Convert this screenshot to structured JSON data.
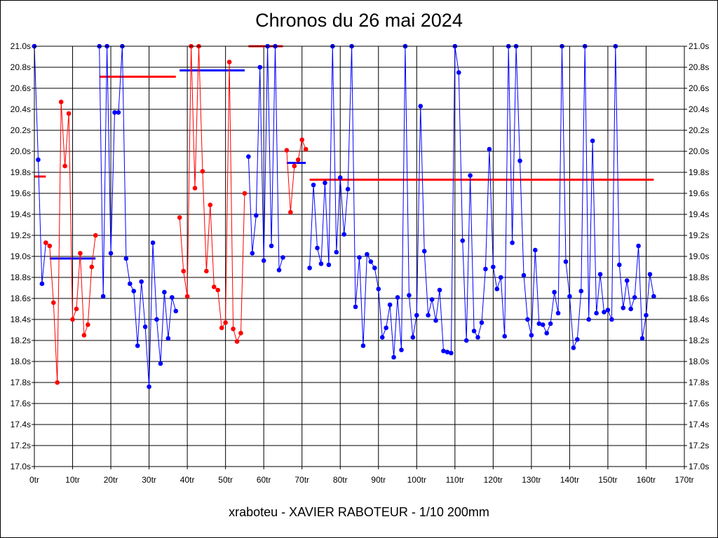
{
  "chart_data": {
    "type": "line",
    "title": "Chronos du 26 mai 2024",
    "subtitle": "xraboteu - XAVIER RABOTEUR - 1/10 200mm",
    "xlabel": "",
    "ylabel": "",
    "xlim": [
      0,
      170
    ],
    "ylim": [
      17.0,
      21.0
    ],
    "grid": true,
    "x_ticks": [
      "0tr",
      "10tr",
      "20tr",
      "30tr",
      "40tr",
      "50tr",
      "60tr",
      "70tr",
      "80tr",
      "90tr",
      "100tr",
      "110tr",
      "120tr",
      "130tr",
      "140tr",
      "150tr",
      "160tr",
      "170tr"
    ],
    "x_tick_values": [
      0,
      10,
      20,
      30,
      40,
      50,
      60,
      70,
      80,
      90,
      100,
      110,
      120,
      130,
      140,
      150,
      160,
      170
    ],
    "y_ticks": [
      "17.0s",
      "17.2s",
      "17.4s",
      "17.6s",
      "17.8s",
      "18.0s",
      "18.2s",
      "18.4s",
      "18.6s",
      "18.8s",
      "19.0s",
      "19.2s",
      "19.4s",
      "19.6s",
      "19.8s",
      "20.0s",
      "20.2s",
      "20.4s",
      "20.6s",
      "20.8s",
      "21.0s"
    ],
    "y_tick_values": [
      17.0,
      17.2,
      17.4,
      17.6,
      17.8,
      18.0,
      18.2,
      18.4,
      18.6,
      18.8,
      19.0,
      19.2,
      19.4,
      19.6,
      19.8,
      20.0,
      20.2,
      20.4,
      20.6,
      20.8,
      21.0
    ],
    "colors": {
      "red": "#ff0000",
      "blue": "#0000ff",
      "grid": "#000000"
    },
    "series": [
      {
        "color": "red",
        "x": [
          0
        ],
        "y": [
          21.0
        ]
      },
      {
        "color": "blue",
        "x": [
          0,
          1,
          2,
          3
        ],
        "y": [
          21.0,
          19.92,
          18.74,
          19.13
        ]
      },
      {
        "color": "red",
        "x": [
          3,
          4,
          5,
          6,
          7,
          8,
          9,
          10,
          11,
          12,
          13,
          14,
          15,
          16
        ],
        "y": [
          19.13,
          19.1,
          18.56,
          17.8,
          20.47,
          19.86,
          20.36,
          18.4,
          18.5,
          19.03,
          18.25,
          18.35,
          18.9,
          19.2
        ]
      },
      {
        "color": "blue",
        "x": [
          17,
          18,
          19,
          20,
          21,
          22,
          23,
          24,
          25,
          26,
          27,
          28,
          29,
          30,
          31,
          32,
          33,
          34,
          35,
          36,
          37
        ],
        "y": [
          21.0,
          18.62,
          21.0,
          19.03,
          20.37,
          20.37,
          21.0,
          18.98,
          18.74,
          18.67,
          18.15,
          18.76,
          18.33,
          17.76,
          19.13,
          18.4,
          17.98,
          18.66,
          18.22,
          18.61,
          18.48
        ]
      },
      {
        "color": "red",
        "x": [
          38,
          39,
          40,
          41,
          42,
          43,
          44,
          45,
          46,
          47,
          48,
          49,
          50,
          51,
          52,
          53,
          54,
          55
        ],
        "y": [
          19.37,
          18.86,
          18.62,
          21.0,
          19.65,
          21.0,
          19.81,
          18.86,
          19.49,
          18.71,
          18.68,
          18.32,
          18.37,
          20.85,
          18.31,
          18.19,
          18.27,
          19.6
        ]
      },
      {
        "color": "blue",
        "x": [
          56,
          57,
          58,
          59,
          60,
          61,
          62,
          63,
          64,
          65
        ],
        "y": [
          19.95,
          19.03,
          19.39,
          20.8,
          18.96,
          21.0,
          19.1,
          21.0,
          18.87,
          18.99
        ]
      },
      {
        "color": "red",
        "x": [
          66,
          67,
          68,
          69,
          70,
          71
        ],
        "y": [
          20.01,
          19.42,
          19.86,
          19.92,
          20.11,
          20.02
        ]
      },
      {
        "color": "blue",
        "x": [
          72,
          73,
          74,
          75,
          76,
          77,
          78,
          79,
          80,
          81,
          82,
          83,
          84,
          85,
          86,
          87,
          88,
          89,
          90,
          91,
          92,
          93,
          94,
          95,
          96,
          97,
          98,
          99,
          100,
          101,
          102,
          103,
          104,
          105,
          106,
          107,
          108,
          109,
          110,
          111,
          112,
          113,
          114,
          115,
          116,
          117,
          118,
          119,
          120,
          121,
          122,
          123,
          124,
          125,
          126,
          127,
          128,
          129,
          130,
          131,
          132,
          133,
          134,
          135,
          136,
          137,
          138,
          139,
          140,
          141,
          142,
          143,
          144,
          145,
          146,
          147,
          148,
          149,
          150,
          151,
          152,
          153,
          154,
          155,
          156,
          157,
          158,
          159,
          160,
          161,
          162
        ],
        "y": [
          18.89,
          19.68,
          19.08,
          18.93,
          19.7,
          18.92,
          21.0,
          19.04,
          19.75,
          19.21,
          19.64,
          21.0,
          18.52,
          18.99,
          18.15,
          19.02,
          18.95,
          18.89,
          18.69,
          18.23,
          18.32,
          18.54,
          18.04,
          18.61,
          18.11,
          21.0,
          18.63,
          18.23,
          18.44,
          20.43,
          19.05,
          18.44,
          18.59,
          18.39,
          18.68,
          18.1,
          18.09,
          18.08,
          21.0,
          20.75,
          19.15,
          18.2,
          19.77,
          18.29,
          18.23,
          18.37,
          18.88,
          20.02,
          18.9,
          18.69,
          18.8,
          18.24,
          21.0,
          19.13,
          21.0,
          19.91,
          18.82,
          18.4,
          18.25,
          19.06,
          18.36,
          18.35,
          18.27,
          18.36,
          18.66,
          18.46,
          21.0,
          18.95,
          18.62,
          18.13,
          18.21,
          18.67,
          21.0,
          18.4,
          20.1,
          18.46,
          18.83,
          18.47,
          18.49,
          18.4,
          21.0,
          18.92,
          18.51,
          18.77,
          18.5,
          18.61,
          19.1,
          18.22,
          18.44,
          18.83,
          18.62
        ]
      }
    ],
    "averages": [
      {
        "color": "red",
        "x": [
          0,
          3
        ],
        "y": 19.76
      },
      {
        "color": "blue",
        "x": [
          4,
          16
        ],
        "y": 18.98
      },
      {
        "color": "red",
        "x": [
          17,
          37
        ],
        "y": 20.71
      },
      {
        "color": "blue",
        "x": [
          38,
          55
        ],
        "y": 20.77
      },
      {
        "color": "red",
        "x": [
          56,
          65
        ],
        "y": 21.0
      },
      {
        "color": "blue",
        "x": [
          66,
          71
        ],
        "y": 19.89
      },
      {
        "color": "red",
        "x": [
          72,
          162
        ],
        "y": 19.73
      }
    ]
  }
}
